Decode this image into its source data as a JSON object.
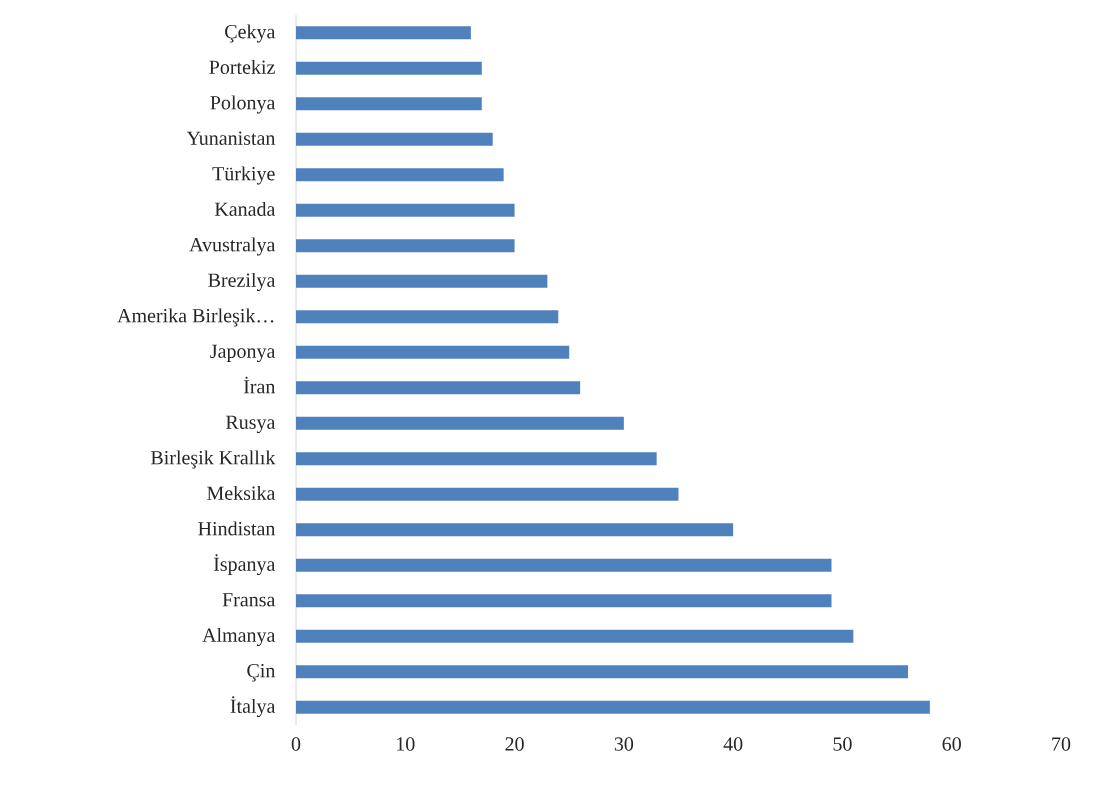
{
  "chart_data": {
    "type": "bar",
    "orientation": "horizontal",
    "color": "#4f81bd",
    "categories": [
      "Çekya",
      "Portekiz",
      "Polonya",
      "Yunanistan",
      "Türkiye",
      "Kanada",
      "Avustralya",
      "Brezilya",
      "Amerika Birleşik…",
      "Japonya",
      "İran",
      "Rusya",
      "Birleşik Krallık",
      "Meksika",
      "Hindistan",
      "İspanya",
      "Fransa",
      "Almanya",
      "Çin",
      "İtalya"
    ],
    "values": [
      16,
      17,
      17,
      18,
      19,
      20,
      20,
      23,
      24,
      25,
      26,
      30,
      33,
      35,
      40,
      49,
      49,
      51,
      56,
      58
    ],
    "xlim": [
      0,
      70
    ],
    "xticks": [
      0,
      10,
      20,
      30,
      40,
      50,
      60,
      70
    ]
  }
}
